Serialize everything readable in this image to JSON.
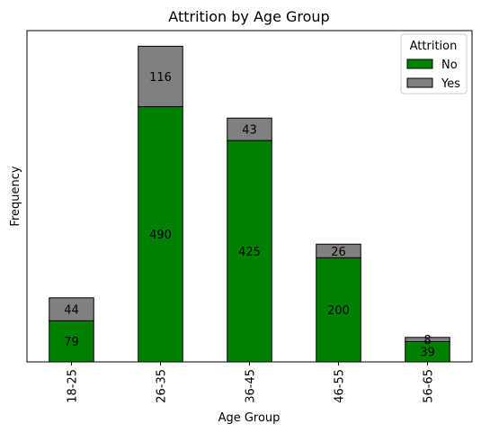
{
  "chart_data": {
    "type": "bar",
    "stacked": true,
    "title": "Attrition by Age Group",
    "xlabel": "Age Group",
    "ylabel": "Frequency",
    "categories": [
      "18-25",
      "26-35",
      "36-45",
      "46-55",
      "56-65"
    ],
    "series": [
      {
        "name": "No",
        "color": "#008000",
        "values": [
          79,
          490,
          425,
          200,
          39
        ]
      },
      {
        "name": "Yes",
        "color": "#808080",
        "values": [
          44,
          116,
          43,
          26,
          8
        ]
      }
    ],
    "ylim": [
      0,
      636
    ],
    "yticks_visible": false,
    "legend": {
      "title": "Attrition",
      "position": "top-right"
    }
  }
}
